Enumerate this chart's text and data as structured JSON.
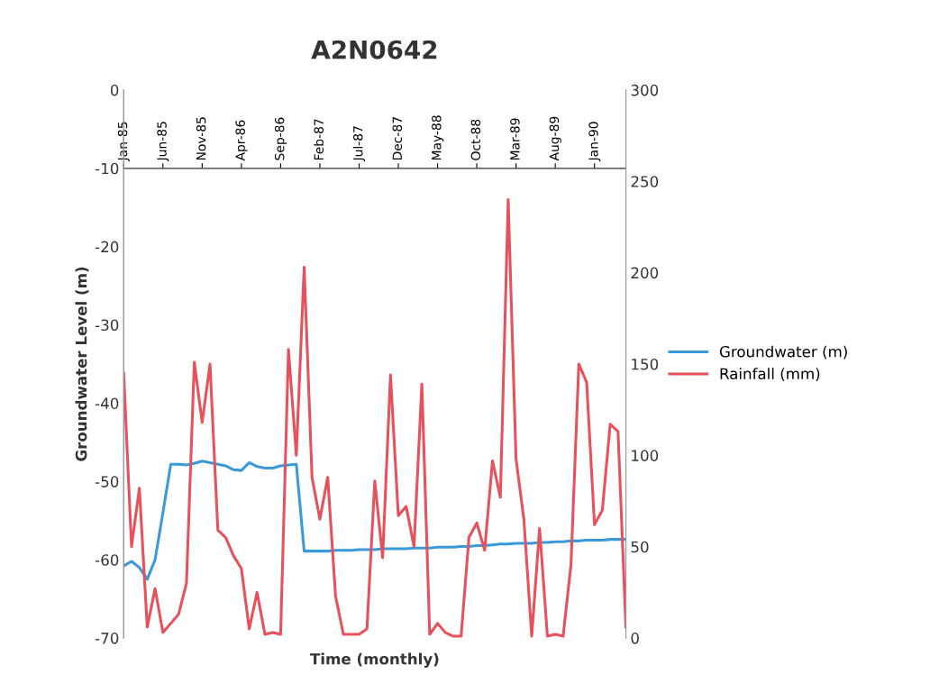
{
  "chart_data": {
    "type": "line",
    "title": "A2N0642",
    "xlabel": "Time (monthly)",
    "ylabel": "Groundwater Level (m)",
    "categories": [
      "Jan-85",
      null,
      null,
      null,
      null,
      "Jun-85",
      null,
      null,
      null,
      null,
      "Nov-85",
      null,
      null,
      null,
      null,
      "Apr-86",
      null,
      null,
      null,
      null,
      "Sep-86",
      null,
      null,
      null,
      null,
      "Feb-87",
      null,
      null,
      null,
      null,
      "Jul-87",
      null,
      null,
      null,
      null,
      "Dec-87",
      null,
      null,
      null,
      null,
      "May-88",
      null,
      null,
      null,
      null,
      "Oct-88",
      null,
      null,
      null,
      null,
      "Mar-89",
      null,
      null,
      null,
      null,
      "Aug-89",
      null,
      null,
      null,
      null,
      "Jan-90",
      null,
      null,
      null,
      null
    ],
    "series": [
      {
        "name": "Groundwater (m)",
        "color": "#3a9ad9",
        "values": [
          -60.8,
          -60.2,
          -61.0,
          -62.5,
          -60.0,
          -54.0,
          -47.8,
          -47.8,
          -47.9,
          -47.7,
          -47.4,
          -47.6,
          -47.8,
          -48.0,
          -48.5,
          -48.6,
          -47.6,
          -48.1,
          -48.3,
          -48.3,
          -48.0,
          -47.9,
          -47.8,
          -58.9,
          -58.9,
          -58.9,
          -58.9,
          -58.8,
          -58.8,
          -58.8,
          -58.7,
          -58.7,
          -58.7,
          -58.6,
          -58.6,
          -58.6,
          -58.6,
          -58.5,
          -58.5,
          -58.5,
          -58.4,
          -58.4,
          -58.4,
          -58.3,
          -58.3,
          -58.2,
          -58.2,
          -58.1,
          -58.0,
          -58.0,
          -57.9,
          -57.9,
          -57.9,
          -57.8,
          -57.8,
          -57.7,
          -57.7,
          -57.6,
          -57.6,
          -57.5,
          -57.5,
          -57.5,
          -57.4,
          -57.4,
          -57.4
        ]
      },
      {
        "name": "Rainfall (mm)",
        "color": "#e8505b",
        "axis": "y2",
        "values": [
          145,
          50,
          82,
          6,
          27,
          3,
          8,
          13,
          30,
          151,
          118,
          150,
          59,
          55,
          45,
          38,
          5,
          25,
          2,
          3,
          2,
          158,
          100,
          203,
          88,
          65,
          88,
          23,
          2,
          2,
          2,
          5,
          86,
          44,
          144,
          67,
          72,
          50,
          139,
          2,
          8,
          3,
          1,
          1,
          55,
          63,
          48,
          97,
          77,
          240,
          98,
          65,
          1,
          60,
          1,
          2,
          1,
          40,
          150,
          140,
          62,
          70,
          117,
          113,
          6
        ]
      }
    ],
    "ylim": [
      -70,
      0
    ],
    "yticks": [
      0,
      -10,
      -20,
      -30,
      -40,
      -50,
      -60,
      -70
    ],
    "y2lim": [
      0,
      300
    ],
    "y2ticks": [
      0,
      50,
      100,
      150,
      200,
      250,
      300
    ],
    "legend": "right",
    "grid": false,
    "marker": "none",
    "line_style": "solid"
  }
}
